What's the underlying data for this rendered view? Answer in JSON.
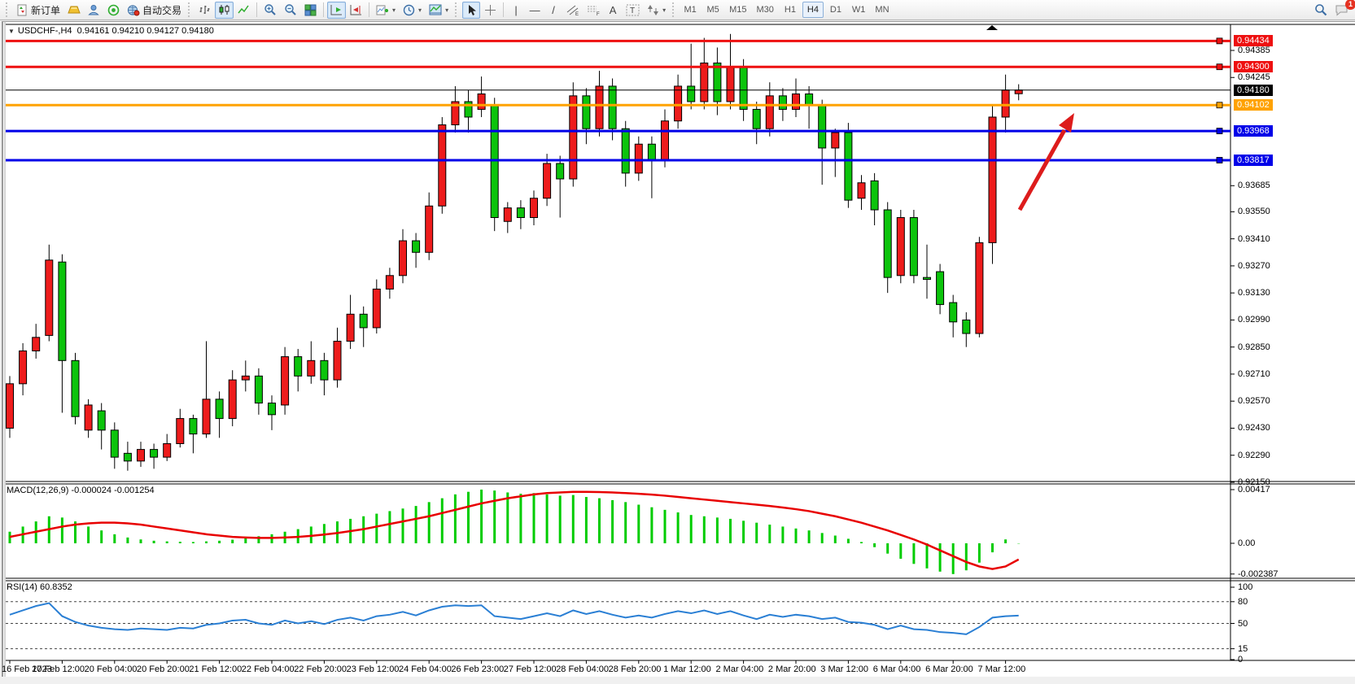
{
  "window": {
    "symbol_title": "USDCHF-,H4",
    "ohlc_text": "0.94161 0.94210 0.94127 0.94180",
    "dropdown_glyph": "▼"
  },
  "toolbar": {
    "new_order_label": "新订单",
    "autotrade_label": "自动交易",
    "text_tool": "A",
    "label_tool": "T",
    "vline_tool": "|",
    "hline_tool": "—",
    "trendline_tool": "/",
    "dropdown_glyph": "▾",
    "chat_badge": "1",
    "timeframes": [
      "M1",
      "M5",
      "M15",
      "M30",
      "H1",
      "H4",
      "D1",
      "W1",
      "MN"
    ],
    "active_timeframe": "H4"
  },
  "chart_data": {
    "type": "candlestick",
    "symbol": "USDCHF-",
    "timeframe": "H4",
    "current_ohlc": {
      "open": "0.94161",
      "high": "0.94210",
      "low": "0.94127",
      "close": "0.94180"
    },
    "color_convention": {
      "bull": "#ee1c1c",
      "bear": "#0cc40c",
      "note": "red = up, green = down"
    },
    "price_axis_ticks": [
      {
        "label": "0.94385",
        "value": 0.94385
      },
      {
        "label": "0.94245",
        "value": 0.94245
      },
      {
        "label": "0.93685",
        "value": 0.93685
      },
      {
        "label": "0.93550",
        "value": 0.9355
      },
      {
        "label": "0.93410",
        "value": 0.9341
      },
      {
        "label": "0.93270",
        "value": 0.9327
      },
      {
        "label": "0.93130",
        "value": 0.9313
      },
      {
        "label": "0.92990",
        "value": 0.9299
      },
      {
        "label": "0.92850",
        "value": 0.9285
      },
      {
        "label": "0.92710",
        "value": 0.9271
      },
      {
        "label": "0.92570",
        "value": 0.9257
      },
      {
        "label": "0.92430",
        "value": 0.9243
      },
      {
        "label": "0.92290",
        "value": 0.9229
      },
      {
        "label": "0.92150",
        "value": 0.9215
      }
    ],
    "levels": [
      {
        "label": "0.94434",
        "value": 0.94434,
        "color": "#ee1010",
        "width": 3,
        "marker": true
      },
      {
        "label": "0.94300",
        "value": 0.943,
        "color": "#ee1010",
        "width": 3,
        "marker": true
      },
      {
        "label": "0.94180",
        "value": 0.9418,
        "color": "#000000",
        "width": 1,
        "marker": false,
        "current": true
      },
      {
        "label": "0.94102",
        "value": 0.94102,
        "color": "#ffa200",
        "width": 3,
        "marker": true
      },
      {
        "label": "0.93968",
        "value": 0.93968,
        "color": "#0000e8",
        "width": 3,
        "marker": true
      },
      {
        "label": "0.93817",
        "value": 0.93817,
        "color": "#0000e8",
        "width": 3,
        "marker": true
      }
    ],
    "time_axis_labels": [
      "16 Feb 2023",
      "17 Feb 12:00",
      "20 Feb 04:00",
      "20 Feb 20:00",
      "21 Feb 12:00",
      "22 Feb 04:00",
      "22 Feb 20:00",
      "23 Feb 12:00",
      "24 Feb 04:00",
      "26 Feb 23:00",
      "27 Feb 12:00",
      "28 Feb 04:00",
      "28 Feb 20:00",
      "1 Mar 12:00",
      "2 Mar 04:00",
      "2 Mar 20:00",
      "3 Mar 12:00",
      "6 Mar 04:00",
      "6 Mar 20:00",
      "7 Mar 12:00"
    ],
    "candles": [
      [
        0.9243,
        0.927,
        0.9238,
        0.9266
      ],
      [
        0.9266,
        0.9287,
        0.926,
        0.9283
      ],
      [
        0.9283,
        0.9297,
        0.9279,
        0.929
      ],
      [
        0.9291,
        0.9338,
        0.9288,
        0.933
      ],
      [
        0.9329,
        0.9333,
        0.9251,
        0.9278
      ],
      [
        0.9278,
        0.9282,
        0.9245,
        0.9249
      ],
      [
        0.9242,
        0.9258,
        0.9238,
        0.9255
      ],
      [
        0.9252,
        0.9256,
        0.9232,
        0.9242
      ],
      [
        0.9242,
        0.9246,
        0.9222,
        0.9228
      ],
      [
        0.923,
        0.9236,
        0.9221,
        0.9226
      ],
      [
        0.9226,
        0.9236,
        0.9223,
        0.9232
      ],
      [
        0.9232,
        0.9235,
        0.9222,
        0.9228
      ],
      [
        0.9228,
        0.924,
        0.9226,
        0.9235
      ],
      [
        0.9235,
        0.9253,
        0.9233,
        0.9248
      ],
      [
        0.9248,
        0.925,
        0.923,
        0.924
      ],
      [
        0.924,
        0.9288,
        0.9238,
        0.9258
      ],
      [
        0.9258,
        0.9262,
        0.9238,
        0.9248
      ],
      [
        0.9248,
        0.9273,
        0.9244,
        0.9268
      ],
      [
        0.9268,
        0.9278,
        0.9262,
        0.927
      ],
      [
        0.927,
        0.9274,
        0.925,
        0.9256
      ],
      [
        0.9256,
        0.926,
        0.9242,
        0.925
      ],
      [
        0.9255,
        0.9285,
        0.925,
        0.928
      ],
      [
        0.928,
        0.9284,
        0.9262,
        0.927
      ],
      [
        0.927,
        0.9288,
        0.9266,
        0.9278
      ],
      [
        0.9278,
        0.9282,
        0.926,
        0.9268
      ],
      [
        0.9268,
        0.9295,
        0.9264,
        0.9288
      ],
      [
        0.9288,
        0.9312,
        0.9284,
        0.9302
      ],
      [
        0.9302,
        0.9306,
        0.9285,
        0.9295
      ],
      [
        0.9295,
        0.932,
        0.9292,
        0.9315
      ],
      [
        0.9315,
        0.9326,
        0.931,
        0.9322
      ],
      [
        0.9322,
        0.9346,
        0.9318,
        0.934
      ],
      [
        0.934,
        0.9344,
        0.9326,
        0.9334
      ],
      [
        0.9334,
        0.9365,
        0.933,
        0.9358
      ],
      [
        0.9358,
        0.9404,
        0.9354,
        0.94
      ],
      [
        0.94,
        0.942,
        0.9396,
        0.9412
      ],
      [
        0.9412,
        0.9418,
        0.9396,
        0.9404
      ],
      [
        0.9408,
        0.9425,
        0.9404,
        0.9416
      ],
      [
        0.941,
        0.9414,
        0.9345,
        0.9352
      ],
      [
        0.935,
        0.936,
        0.9344,
        0.9357
      ],
      [
        0.9357,
        0.9361,
        0.9346,
        0.9352
      ],
      [
        0.9352,
        0.9366,
        0.9348,
        0.9362
      ],
      [
        0.9362,
        0.9385,
        0.9358,
        0.938
      ],
      [
        0.938,
        0.9384,
        0.9352,
        0.9372
      ],
      [
        0.9372,
        0.9422,
        0.9368,
        0.9415
      ],
      [
        0.9415,
        0.9419,
        0.939,
        0.9398
      ],
      [
        0.9398,
        0.9428,
        0.9394,
        0.942
      ],
      [
        0.942,
        0.9424,
        0.9392,
        0.9398
      ],
      [
        0.9398,
        0.9402,
        0.9368,
        0.9375
      ],
      [
        0.9375,
        0.9394,
        0.9371,
        0.939
      ],
      [
        0.939,
        0.9394,
        0.9362,
        0.9382
      ],
      [
        0.9382,
        0.9408,
        0.9378,
        0.9402
      ],
      [
        0.9402,
        0.9426,
        0.9398,
        0.942
      ],
      [
        0.942,
        0.9442,
        0.9408,
        0.9412
      ],
      [
        0.9412,
        0.9445,
        0.9408,
        0.9432
      ],
      [
        0.9432,
        0.944,
        0.9405,
        0.9412
      ],
      [
        0.9412,
        0.9447,
        0.9408,
        0.943
      ],
      [
        0.943,
        0.9434,
        0.9402,
        0.9408
      ],
      [
        0.9408,
        0.9412,
        0.939,
        0.9398
      ],
      [
        0.9398,
        0.9422,
        0.9394,
        0.9415
      ],
      [
        0.9415,
        0.9419,
        0.9402,
        0.9408
      ],
      [
        0.9408,
        0.9424,
        0.9404,
        0.9416
      ],
      [
        0.9416,
        0.942,
        0.9398,
        0.941
      ],
      [
        0.941,
        0.9413,
        0.9369,
        0.9388
      ],
      [
        0.9388,
        0.9398,
        0.9373,
        0.9396
      ],
      [
        0.9396,
        0.9401,
        0.9357,
        0.9361
      ],
      [
        0.9362,
        0.9374,
        0.9356,
        0.937
      ],
      [
        0.9371,
        0.9375,
        0.9348,
        0.9356
      ],
      [
        0.9356,
        0.936,
        0.9313,
        0.9321
      ],
      [
        0.9322,
        0.9356,
        0.9318,
        0.9352
      ],
      [
        0.9352,
        0.9356,
        0.9318,
        0.9322
      ],
      [
        0.9321,
        0.9338,
        0.931,
        0.932
      ],
      [
        0.9324,
        0.9328,
        0.9302,
        0.9307
      ],
      [
        0.9308,
        0.9312,
        0.929,
        0.9298
      ],
      [
        0.9299,
        0.9303,
        0.9285,
        0.9292
      ],
      [
        0.9292,
        0.9342,
        0.929,
        0.9339
      ],
      [
        0.9339,
        0.941,
        0.9328,
        0.9404
      ],
      [
        0.9404,
        0.9426,
        0.9396,
        0.9418
      ],
      [
        0.94161,
        0.9421,
        0.94127,
        0.9418
      ]
    ],
    "indicators": [
      {
        "name": "MACD(12,26,9)",
        "header": "MACD(12,26,9) -0.000024 -0.001254",
        "values_text": [
          "-0.000024",
          "-0.001254"
        ],
        "scale_labels": [
          {
            "label": "0.00417",
            "value": 0.00417
          },
          {
            "label": "0.00",
            "value": 0
          },
          {
            "label": "-0.002387",
            "value": -0.002387
          }
        ],
        "histogram_color": "#00cc00",
        "signal_color": "#e80000",
        "histogram": [
          0.9,
          1.3,
          1.7,
          2.1,
          2.0,
          1.7,
          1.3,
          1.0,
          0.7,
          0.45,
          0.3,
          0.2,
          0.15,
          0.12,
          0.1,
          0.15,
          0.2,
          0.28,
          0.4,
          0.55,
          0.7,
          0.9,
          1.1,
          1.3,
          1.5,
          1.7,
          1.9,
          2.1,
          2.3,
          2.5,
          2.7,
          2.9,
          3.2,
          3.5,
          3.8,
          4.0,
          4.17,
          4.1,
          3.95,
          3.85,
          3.9,
          3.8,
          3.7,
          3.75,
          3.6,
          3.5,
          3.35,
          3.2,
          3.0,
          2.8,
          2.6,
          2.4,
          2.2,
          2.1,
          2.0,
          1.9,
          1.75,
          1.6,
          1.45,
          1.3,
          1.15,
          1.0,
          0.8,
          0.6,
          0.35,
          0.1,
          -0.3,
          -0.8,
          -1.2,
          -1.6,
          -1.95,
          -2.2,
          -2.39,
          -2.1,
          -1.5,
          -0.7,
          0.3,
          -0.024
        ],
        "signal": [
          0.5,
          0.7,
          0.9,
          1.1,
          1.3,
          1.45,
          1.55,
          1.6,
          1.6,
          1.55,
          1.45,
          1.3,
          1.15,
          1.0,
          0.85,
          0.7,
          0.6,
          0.5,
          0.45,
          0.42,
          0.42,
          0.45,
          0.5,
          0.58,
          0.68,
          0.8,
          0.95,
          1.1,
          1.3,
          1.5,
          1.7,
          1.9,
          2.1,
          2.35,
          2.6,
          2.85,
          3.1,
          3.3,
          3.5,
          3.65,
          3.8,
          3.9,
          3.95,
          4.0,
          4.0,
          3.98,
          3.95,
          3.9,
          3.85,
          3.78,
          3.7,
          3.6,
          3.5,
          3.4,
          3.3,
          3.2,
          3.1,
          3.0,
          2.9,
          2.78,
          2.65,
          2.5,
          2.3,
          2.1,
          1.85,
          1.6,
          1.3,
          1.0,
          0.65,
          0.3,
          -0.1,
          -0.55,
          -1.0,
          -1.45,
          -1.8,
          -2.0,
          -1.8,
          -1.254
        ]
      },
      {
        "name": "RSI(14)",
        "header": "RSI(14) 60.8352",
        "current_value": "60.8352",
        "line_color": "#2a7fd4",
        "scale_labels": [
          {
            "label": "100",
            "value": 100
          },
          {
            "label": "80",
            "value": 80,
            "dashed": true
          },
          {
            "label": "50",
            "value": 50,
            "dashed": true
          },
          {
            "label": "15",
            "value": 15,
            "dashed": true
          },
          {
            "label": "0",
            "value": 0
          }
        ],
        "values": [
          62,
          68,
          74,
          78,
          60,
          52,
          47,
          44,
          42,
          41,
          43,
          42,
          41,
          44,
          43,
          48,
          50,
          54,
          55,
          50,
          48,
          54,
          50,
          53,
          49,
          55,
          58,
          54,
          60,
          62,
          66,
          61,
          68,
          73,
          75,
          74,
          75,
          60,
          58,
          56,
          60,
          64,
          60,
          68,
          63,
          67,
          62,
          58,
          61,
          58,
          63,
          67,
          64,
          68,
          63,
          67,
          61,
          56,
          62,
          59,
          62,
          60,
          56,
          58,
          52,
          51,
          48,
          42,
          47,
          42,
          41,
          38,
          37,
          35,
          45,
          58,
          60,
          60.8
        ]
      }
    ],
    "annotation": {
      "type": "arrow-up-right",
      "color": "#dd1c1c"
    }
  }
}
